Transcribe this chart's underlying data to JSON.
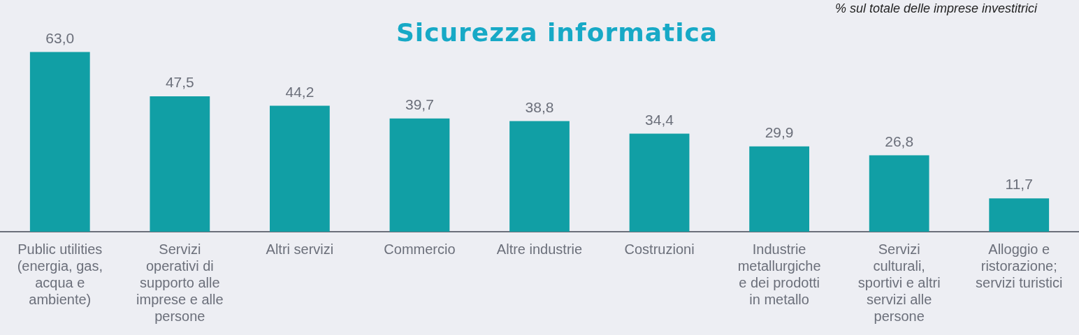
{
  "chart_data": {
    "type": "bar",
    "title": "Sicurezza informatica",
    "subtitle": "% sul totale delle imprese investitrici",
    "categories": [
      "Public utilities (energia, gas, acqua e ambiente)",
      "Servizi operativi di supporto alle imprese e alle persone",
      "Altri servizi",
      "Commercio",
      "Altre industrie",
      "Costruzioni",
      "Industrie metallurgiche e dei prodotti in metallo",
      "Servizi culturali, sportivi e altri servizi alle persone",
      "Alloggio e ristorazione; servizi turistici"
    ],
    "values": [
      63.0,
      47.5,
      44.2,
      39.7,
      38.8,
      34.4,
      29.9,
      26.8,
      11.7
    ],
    "value_labels": [
      "63,0",
      "47,5",
      "44,2",
      "39,7",
      "38,8",
      "34,4",
      "29,9",
      "26,8",
      "11,7"
    ],
    "color": "#119fa5",
    "grid": false,
    "legend": false
  }
}
